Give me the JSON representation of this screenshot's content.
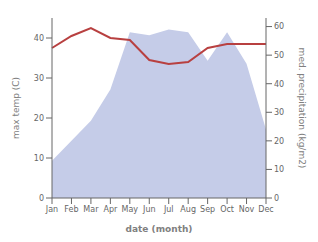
{
  "chart_data": {
    "type": "line",
    "xlabel": "date (month)",
    "ylabel": "max temp (C)",
    "y2label": "med. precipitation (kg/m2)",
    "categories": [
      "Jan",
      "Feb",
      "Mar",
      "Apr",
      "May",
      "Jun",
      "Jul",
      "Aug",
      "Sep",
      "Oct",
      "Nov",
      "Dec"
    ],
    "series": [
      {
        "type": "area",
        "axis": "y2",
        "color": "#c5cce8",
        "values": [
          13,
          20,
          27,
          38,
          58,
          57,
          59,
          58,
          48,
          58,
          47,
          24
        ]
      },
      {
        "type": "line",
        "color": "#b84040",
        "values": [
          37.5,
          40.5,
          42.5,
          40.0,
          39.5,
          34.5,
          33.5,
          34.0,
          37.5,
          38.5,
          38.5,
          38.5
        ]
      }
    ],
    "ylim": [
      0,
      45
    ],
    "yticks": [
      0,
      10,
      20,
      30,
      40
    ],
    "y2lim": [
      0,
      63
    ],
    "y2ticks": [
      0,
      10,
      20,
      30,
      40,
      50,
      60
    ],
    "grid": false
  }
}
